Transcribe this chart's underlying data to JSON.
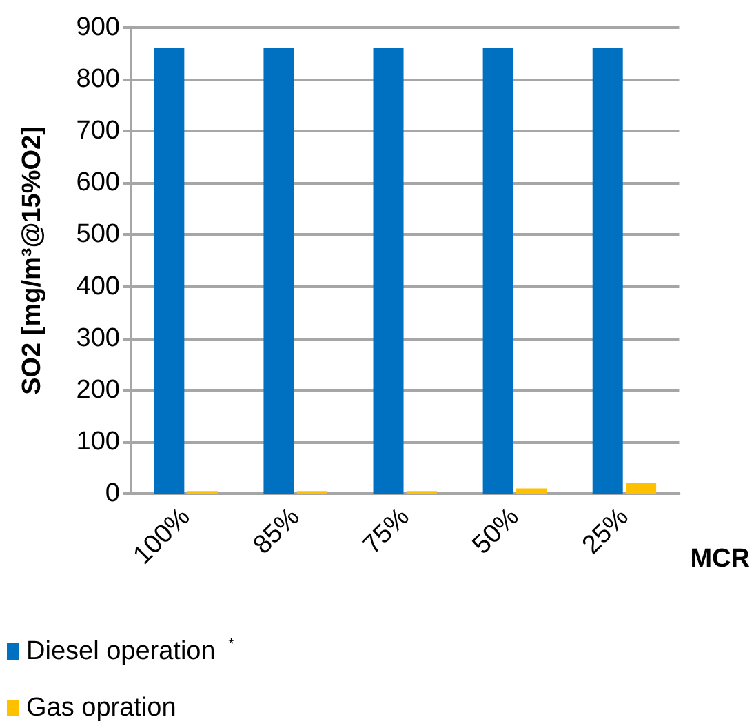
{
  "chart_data": {
    "type": "bar",
    "ylabel": "SO2 [mg/m³@15%O2]",
    "xlabel": "MCR",
    "categories": [
      "100%",
      "85%",
      "75%",
      "50%",
      "25%"
    ],
    "series": [
      {
        "name": "Diesel operation $^{*}$",
        "color": "#0070c0",
        "values": [
          860,
          860,
          860,
          860,
          860
        ]
      },
      {
        "name": "Gas opration",
        "color": "#ffc000",
        "values": [
          5,
          5,
          5,
          10,
          20
        ]
      }
    ],
    "ylim": [
      0,
      900
    ],
    "yticks": [
      0,
      100,
      200,
      300,
      400,
      500,
      600,
      700,
      800,
      900
    ],
    "grid": "y",
    "legend": "bottom left"
  }
}
